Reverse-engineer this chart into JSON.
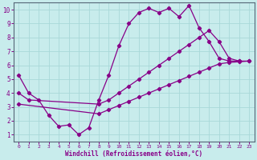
{
  "bg_color": "#c8ecec",
  "line_color": "#880088",
  "grid_color": "#a8d8d8",
  "xlabel": "Windchill (Refroidissement éolien,°C)",
  "xmin": -0.5,
  "xmax": 23.5,
  "ymin": 0.5,
  "ymax": 10.5,
  "xticks": [
    0,
    1,
    2,
    3,
    4,
    5,
    6,
    7,
    8,
    9,
    10,
    11,
    12,
    13,
    14,
    15,
    16,
    17,
    18,
    19,
    20,
    21,
    22,
    23
  ],
  "yticks": [
    1,
    2,
    3,
    4,
    5,
    6,
    7,
    8,
    9,
    10
  ],
  "series1_x": [
    0,
    1,
    2,
    3,
    4,
    5,
    6,
    7,
    8,
    9,
    10,
    11,
    12,
    13,
    14,
    15,
    16,
    17,
    18,
    19,
    20,
    21,
    22
  ],
  "series1_y": [
    5.3,
    4.0,
    3.5,
    2.4,
    1.6,
    1.7,
    1.0,
    1.5,
    3.5,
    5.3,
    7.4,
    9.0,
    9.8,
    10.1,
    9.8,
    10.1,
    9.5,
    10.3,
    8.7,
    7.7,
    6.5,
    6.3,
    6.3
  ],
  "series2_x": [
    0,
    1,
    8,
    9,
    10,
    11,
    12,
    13,
    14,
    15,
    16,
    17,
    18,
    19,
    20,
    21,
    22,
    23
  ],
  "series2_y": [
    4.0,
    3.5,
    3.2,
    3.5,
    4.0,
    4.5,
    5.0,
    5.5,
    6.0,
    6.5,
    7.0,
    7.5,
    8.0,
    8.5,
    7.7,
    6.5,
    6.3,
    6.3
  ],
  "series3_x": [
    0,
    8,
    9,
    10,
    11,
    12,
    13,
    14,
    15,
    16,
    17,
    18,
    19,
    20,
    21,
    22,
    23
  ],
  "series3_y": [
    3.2,
    2.5,
    2.8,
    3.1,
    3.4,
    3.7,
    4.0,
    4.3,
    4.6,
    4.9,
    5.2,
    5.5,
    5.8,
    6.1,
    6.2,
    6.25,
    6.3
  ]
}
